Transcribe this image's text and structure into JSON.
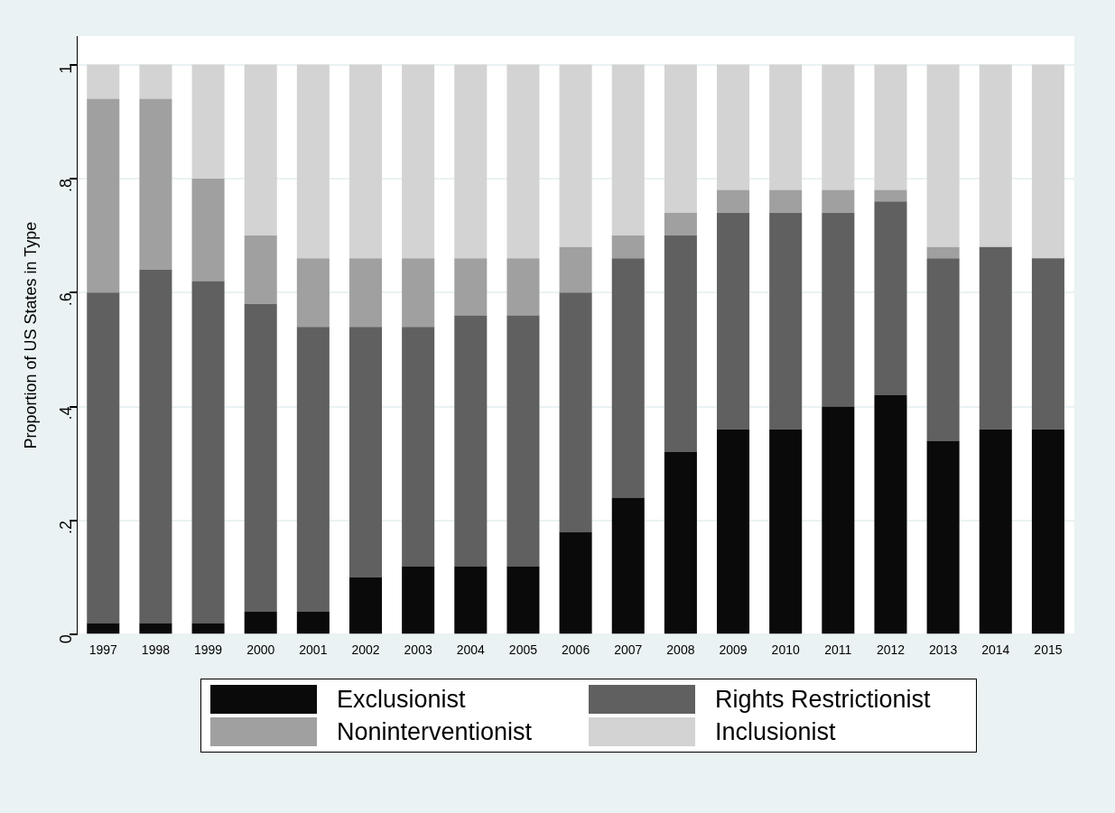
{
  "chart_data": {
    "type": "bar",
    "stacked": true,
    "ylabel": "Proportion of US States in Type",
    "categories": [
      "1997",
      "1998",
      "1999",
      "2000",
      "2001",
      "2002",
      "2003",
      "2004",
      "2005",
      "2006",
      "2007",
      "2008",
      "2009",
      "2010",
      "2011",
      "2012",
      "2013",
      "2014",
      "2015"
    ],
    "series": [
      {
        "name": "Exclusionist",
        "color": "#0a0a0a",
        "values": [
          0.02,
          0.02,
          0.02,
          0.04,
          0.04,
          0.1,
          0.12,
          0.12,
          0.12,
          0.18,
          0.24,
          0.32,
          0.36,
          0.36,
          0.4,
          0.42,
          0.34,
          0.36,
          0.36
        ]
      },
      {
        "name": "Rights Restrictionist",
        "color": "#606060",
        "values": [
          0.58,
          0.62,
          0.6,
          0.54,
          0.5,
          0.44,
          0.42,
          0.44,
          0.44,
          0.42,
          0.42,
          0.38,
          0.38,
          0.38,
          0.34,
          0.34,
          0.32,
          0.32,
          0.3
        ]
      },
      {
        "name": "Noninterventionist",
        "color": "#a0a0a0",
        "values": [
          0.34,
          0.3,
          0.18,
          0.12,
          0.12,
          0.12,
          0.12,
          0.1,
          0.1,
          0.08,
          0.04,
          0.04,
          0.04,
          0.04,
          0.04,
          0.02,
          0.02,
          0,
          0
        ]
      },
      {
        "name": "Inclusionist",
        "color": "#d3d3d3",
        "values": [
          0.06,
          0.06,
          0.2,
          0.3,
          0.34,
          0.34,
          0.34,
          0.34,
          0.34,
          0.32,
          0.3,
          0.26,
          0.22,
          0.22,
          0.22,
          0.22,
          0.32,
          0.32,
          0.34
        ]
      }
    ],
    "ylim": [
      0,
      1.05
    ],
    "yticks": [
      0,
      {
        "value": 0.2,
        "label": ".2"
      },
      {
        "value": 0.4,
        "label": ".4"
      },
      {
        "value": 0.6,
        "label": ".6"
      },
      {
        "value": 0.8,
        "label": ".8"
      },
      1
    ],
    "grid": "y",
    "legend": "bottom"
  }
}
